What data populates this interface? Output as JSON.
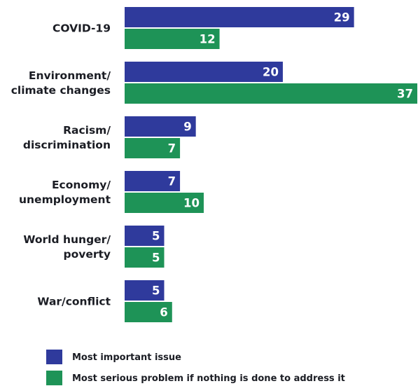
{
  "chart_data": {
    "type": "bar",
    "orientation": "horizontal",
    "categories": [
      [
        "COVID-19"
      ],
      [
        "Environment/",
        "climate changes"
      ],
      [
        "Racism/",
        "discrimination"
      ],
      [
        "Economy/",
        "unemployment"
      ],
      [
        "World hunger/",
        "poverty"
      ],
      [
        "War/conflict"
      ]
    ],
    "series": [
      {
        "name": "Most important issue",
        "color": "#2f3a9c",
        "values": [
          29,
          20,
          9,
          7,
          5,
          5
        ]
      },
      {
        "name": "Most serious problem if nothing is done to address it",
        "color": "#1e9357",
        "values": [
          12,
          37,
          7,
          10,
          5,
          6
        ]
      }
    ],
    "xlim": [
      0,
      37
    ],
    "grid": false,
    "legend_position": "bottom-left",
    "data_labels": "inside-end"
  }
}
